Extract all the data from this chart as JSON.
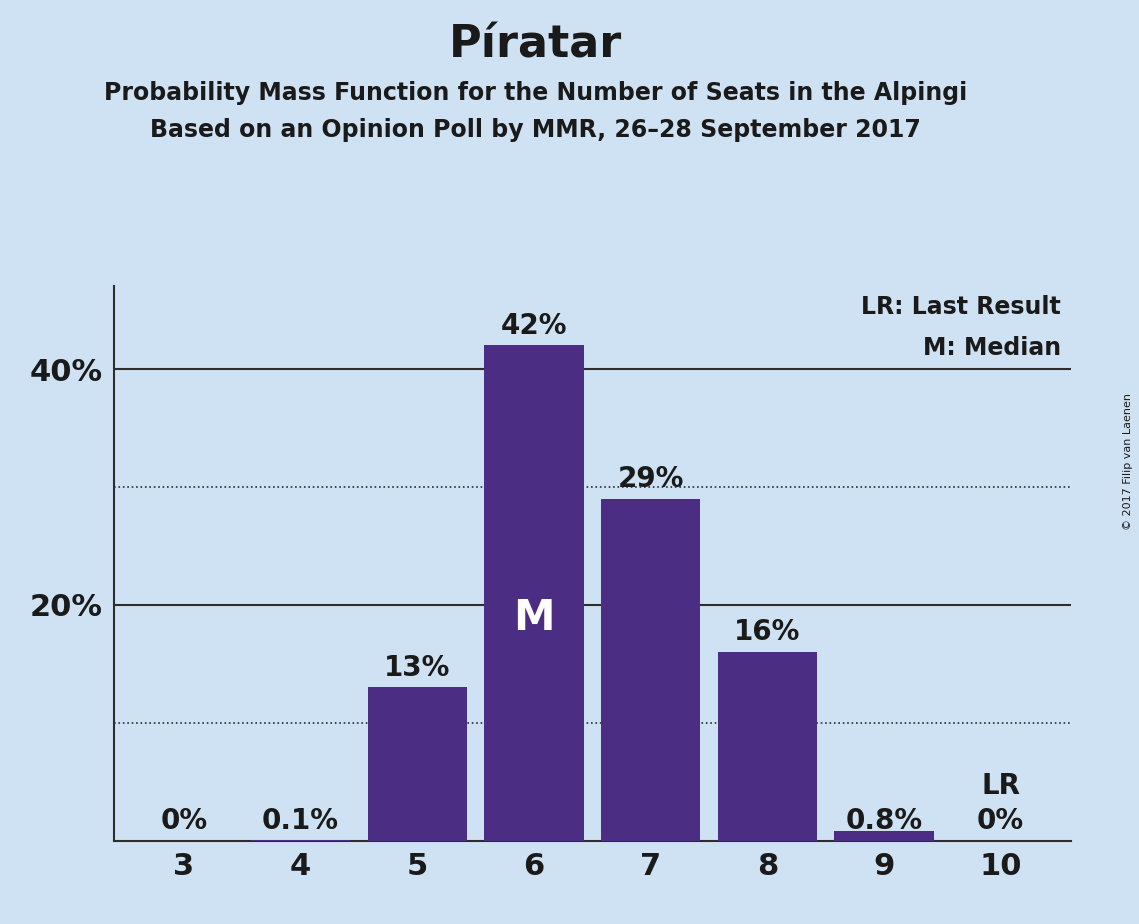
{
  "title": "Píratar",
  "subtitle1": "Probability Mass Function for the Number of Seats in the Alpingi",
  "subtitle2": "Based on an Opinion Poll by MMR, 26–28 September 2017",
  "copyright": "© 2017 Filip van Laenen",
  "categories": [
    3,
    4,
    5,
    6,
    7,
    8,
    9,
    10
  ],
  "values": [
    0.0,
    0.1,
    13.0,
    42.0,
    29.0,
    16.0,
    0.8,
    0.0
  ],
  "bar_color": "#4b2e83",
  "background_color": "#cfe2f3",
  "title_color": "#1a1a1a",
  "label_color": "#1a1a1a",
  "solid_gridlines": [
    20,
    40
  ],
  "dotted_gridlines": [
    10,
    30
  ],
  "ylim": [
    0,
    47
  ],
  "yticks": [
    20,
    40
  ],
  "median_bar": 6,
  "median_label": "M",
  "lr_bar": 10,
  "lr_label": "LR",
  "legend_lr": "LR: Last Result",
  "legend_m": "M: Median",
  "bar_labels": [
    "0%",
    "0.1%",
    "13%",
    "42%",
    "29%",
    "16%",
    "0.8%",
    "0%"
  ],
  "title_fontsize": 32,
  "subtitle_fontsize": 17,
  "label_fontsize": 20,
  "tick_fontsize": 22,
  "legend_fontsize": 17,
  "median_fontsize": 30,
  "lr_fontsize": 20,
  "annot_fontsize": 20
}
